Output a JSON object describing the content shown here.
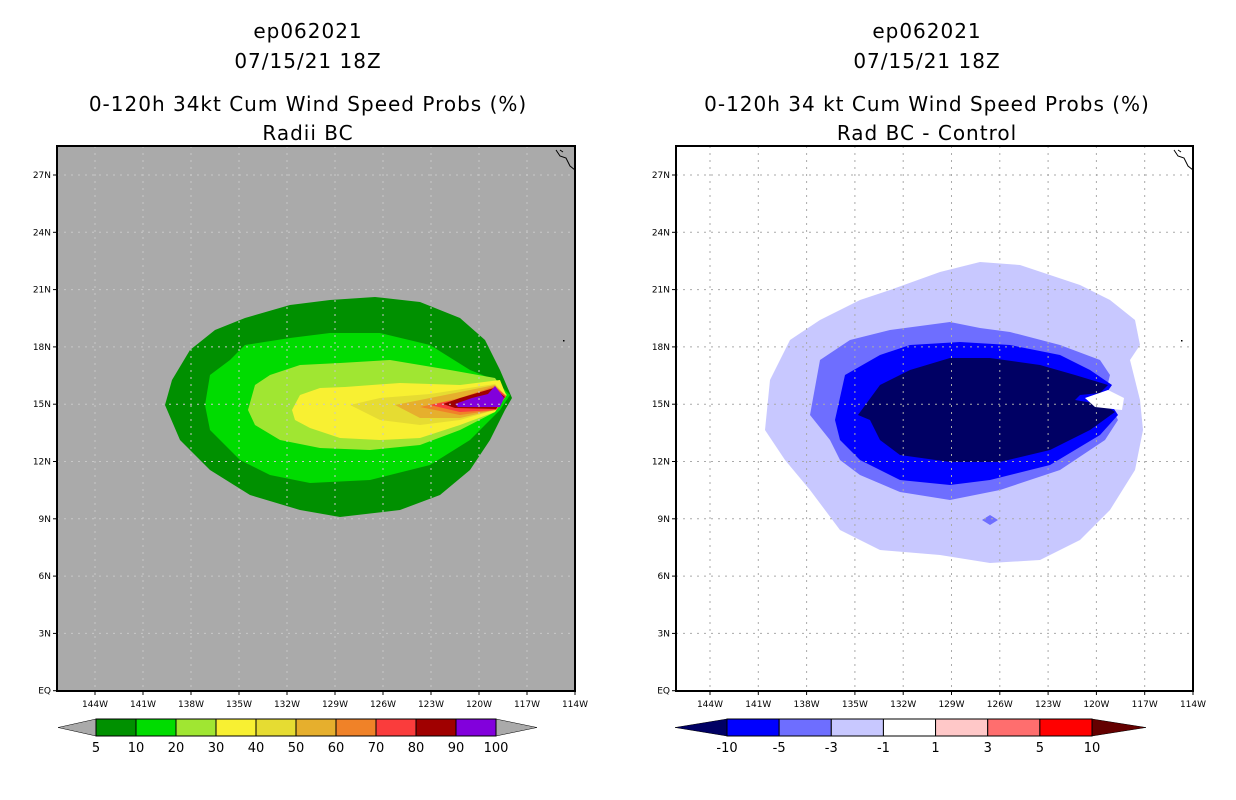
{
  "chart_data": [
    {
      "type": "heatmap",
      "title_lines": [
        "ep062021",
        "07/15/21 18Z",
        "0-120h 34kt Cum Wind Speed Probs (%)",
        "Radii BC"
      ],
      "background": "#aaaaaa",
      "lon_ticks": [
        "144W",
        "141W",
        "138W",
        "135W",
        "132W",
        "129W",
        "126W",
        "123W",
        "120W",
        "117W",
        "114W"
      ],
      "lat_ticks": [
        "27N",
        "24N",
        "21N",
        "18N",
        "15N",
        "12N",
        "9N",
        "6N",
        "3N",
        "EQ"
      ],
      "grid": true,
      "colorbar": {
        "labels": [
          "5",
          "10",
          "20",
          "30",
          "40",
          "50",
          "60",
          "70",
          "80",
          "90",
          "100"
        ],
        "colors": [
          "#009000",
          "#00dc00",
          "#a0e632",
          "#f8f032",
          "#e6dc32",
          "#e6af2d",
          "#f08228",
          "#fa3c3c",
          "#a00000",
          "#8200dc"
        ],
        "low_color": "#aaaaaa",
        "high_color": "#aaaaaa"
      }
    },
    {
      "type": "heatmap",
      "title_lines": [
        "ep062021",
        "07/15/21 18Z",
        "0-120h 34 kt Cum Wind Speed Probs (%)",
        "Rad BC - Control"
      ],
      "background": "#ffffff",
      "lon_ticks": [
        "144W",
        "141W",
        "138W",
        "135W",
        "132W",
        "129W",
        "126W",
        "123W",
        "120W",
        "117W",
        "114W"
      ],
      "lat_ticks": [
        "27N",
        "24N",
        "21N",
        "18N",
        "15N",
        "12N",
        "9N",
        "6N",
        "3N",
        "EQ"
      ],
      "grid": true,
      "colorbar": {
        "labels": [
          "-10",
          "-5",
          "-3",
          "-1",
          "1",
          "3",
          "5",
          "10"
        ],
        "colors": [
          "#0000ff",
          "#6e6eff",
          "#c8c8ff",
          "#ffffff",
          "#ffc8c8",
          "#ff6e6e",
          "#ff0000"
        ],
        "low_color": "#000064",
        "high_color": "#640000"
      }
    }
  ]
}
